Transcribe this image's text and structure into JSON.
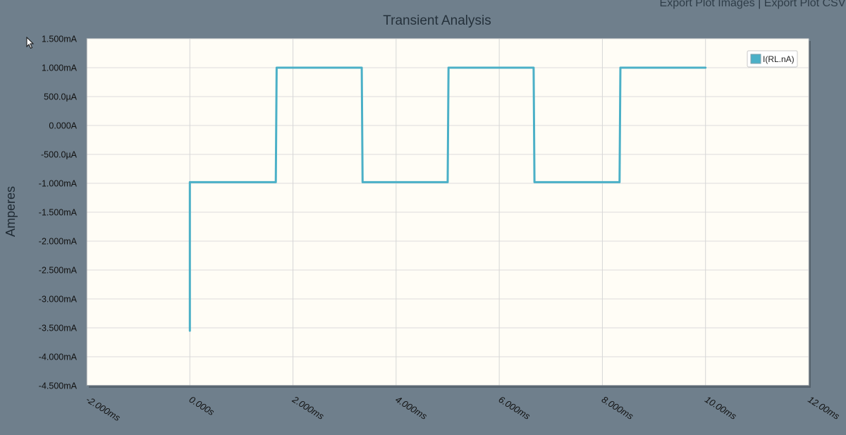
{
  "header": {
    "export_images": "Export Plot Images",
    "export_csv": "Export Plot CSV",
    "separator": "|"
  },
  "chart_data": {
    "type": "line",
    "title": "Transient Analysis",
    "ylabel": "Amperes",
    "xlabel": "",
    "xlim": [
      -2,
      12
    ],
    "ylim": [
      -4.5,
      1.5
    ],
    "x_unit": "ms",
    "y_unit": "mA",
    "grid": true,
    "legend_position": "top-right",
    "y_ticks": [
      1.5,
      1.0,
      0.5,
      0.0,
      -0.5,
      -1.0,
      -1.5,
      -2.0,
      -2.5,
      -3.0,
      -3.5,
      -4.0,
      -4.5
    ],
    "y_tick_labels": [
      "1.500mA",
      "1.000mA",
      "500.0µA",
      "0.000A",
      "-500.0µA",
      "-1.000mA",
      "-1.500mA",
      "-2.000mA",
      "-2.500mA",
      "-3.000mA",
      "-3.500mA",
      "-4.000mA",
      "-4.500mA"
    ],
    "x_ticks": [
      -2,
      0,
      2,
      4,
      6,
      8,
      10,
      12
    ],
    "x_tick_labels": [
      "-2.000ms",
      "0.000s",
      "2.000ms",
      "4.000ms",
      "6.000ms",
      "8.000ms",
      "10.00ms",
      "12.00ms"
    ],
    "series": [
      {
        "name": "I(RL.nA)",
        "color": "#4bb0c7",
        "x": [
          0,
          0,
          1.667,
          1.683,
          3.333,
          3.35,
          5.0,
          5.017,
          6.667,
          6.683,
          8.333,
          8.35,
          10.0
        ],
        "y": [
          -3.55,
          -0.98,
          -0.98,
          1.0,
          1.0,
          -0.98,
          -0.98,
          1.0,
          1.0,
          -0.98,
          -0.98,
          1.0,
          1.0
        ]
      }
    ]
  }
}
